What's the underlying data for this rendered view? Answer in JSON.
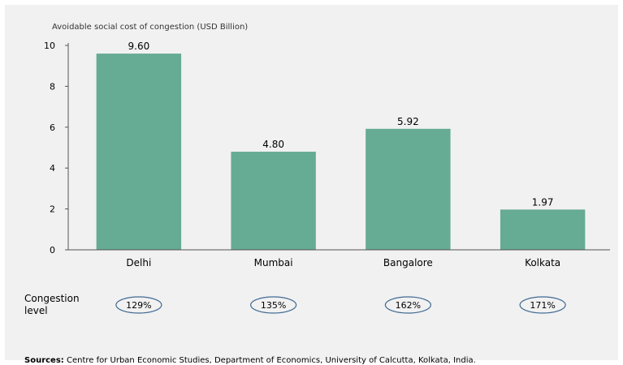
{
  "chart_data": {
    "type": "bar",
    "ylabel": "Avoidable social cost of congestion (USD Billion)",
    "categories": [
      "Delhi",
      "Mumbai",
      "Bangalore",
      "Kolkata"
    ],
    "values": [
      9.6,
      4.8,
      5.92,
      1.97
    ],
    "value_labels": [
      "9.60",
      "4.80",
      "5.92",
      "1.97"
    ],
    "ylim": [
      0,
      10
    ],
    "yticks": [
      0,
      2,
      4,
      6,
      8,
      10
    ],
    "grid": false,
    "bar_color": "#66ab93"
  },
  "congestion": {
    "label_line1": "Congestion",
    "label_line2": "level",
    "values": [
      "129%",
      "135%",
      "162%",
      "171%"
    ],
    "badge_border_color": "#3f6a93"
  },
  "source": {
    "prefix": "Sources:",
    "text": " Centre for Urban Economic Studies, Department of Economics, University of Calcutta, Kolkata, India."
  }
}
